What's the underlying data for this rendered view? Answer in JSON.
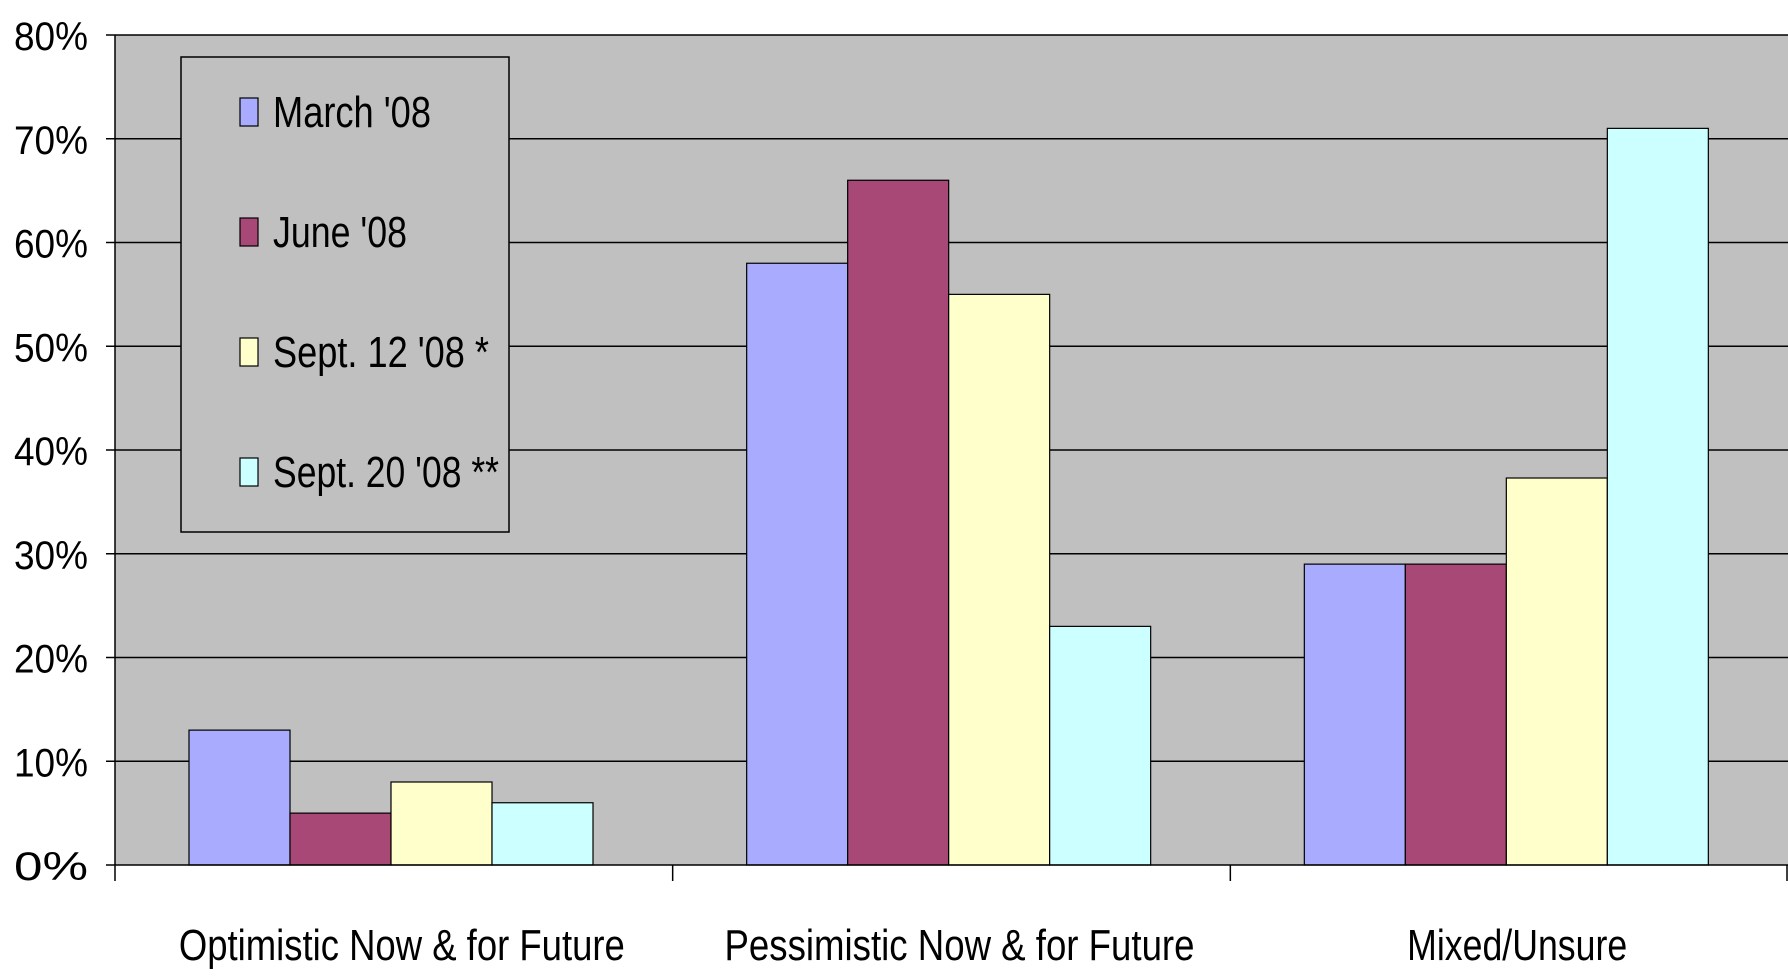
{
  "chart_data": {
    "type": "bar",
    "categories": [
      "Optimistic Now  & for Future",
      "Pessimistic Now  & for Future",
      "Mixed/Unsure"
    ],
    "series": [
      {
        "name": "March '08",
        "values": [
          13,
          58,
          29
        ]
      },
      {
        "name": "June '08",
        "values": [
          5,
          66,
          29
        ]
      },
      {
        "name": "Sept. 12 '08 *",
        "values": [
          8,
          55,
          37.3
        ]
      },
      {
        "name": "Sept. 20 '08 **",
        "values": [
          6,
          23,
          71
        ]
      }
    ],
    "yticks": [
      "0%",
      "10%",
      "20%",
      "30%",
      "40%",
      "50%",
      "60%",
      "70%",
      "80%"
    ],
    "ylim": [
      0,
      80
    ],
    "grid": true,
    "legend_position": "top-left",
    "title": "",
    "xlabel": "",
    "ylabel": ""
  },
  "colors": {
    "plot_background": "#c0c0c0",
    "series": [
      "#a9abfe",
      "#a84877",
      "#ffffcc",
      "#ccffff"
    ],
    "gridline": "#000000",
    "bar_border": "#000000"
  }
}
